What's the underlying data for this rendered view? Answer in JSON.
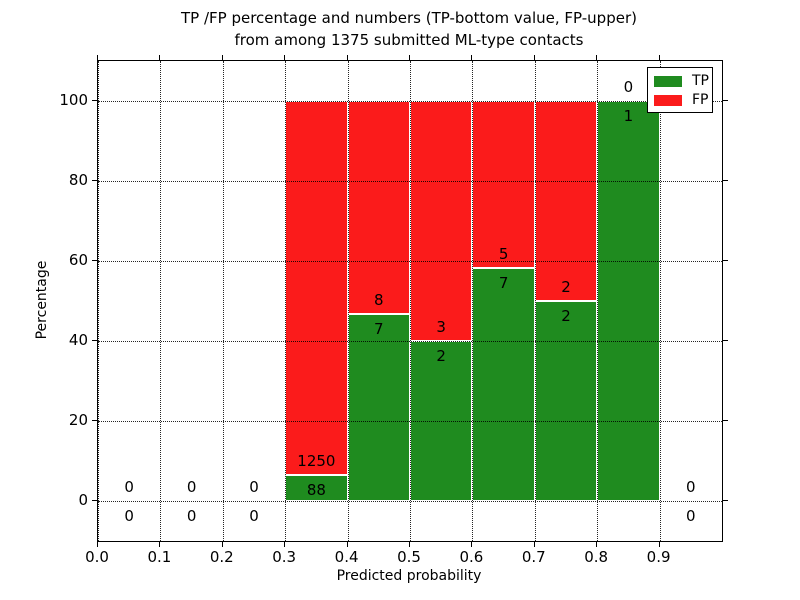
{
  "title": {
    "line1": "TP /FP percentage and numbers (TP-bottom value, FP-upper)",
    "line2": "from among 1375 submitted ML-type contacts"
  },
  "chart_data": {
    "type": "bar",
    "stacked": true,
    "normalized_to_percent": true,
    "title": "TP /FP percentage and numbers (TP-bottom value, FP-upper)\nfrom among 1375 submitted ML-type contacts",
    "xlabel": "Predicted probability",
    "ylabel": "Percentage",
    "xlim": [
      0.0,
      1.0
    ],
    "ylim": [
      -10,
      110
    ],
    "xticks": [
      "0.0",
      "0.1",
      "0.2",
      "0.3",
      "0.4",
      "0.5",
      "0.6",
      "0.7",
      "0.8",
      "0.9"
    ],
    "xtick_values": [
      0.0,
      0.1,
      0.2,
      0.3,
      0.4,
      0.5,
      0.6,
      0.7,
      0.8,
      0.9
    ],
    "yticks": [
      "0",
      "20",
      "40",
      "60",
      "80",
      "100"
    ],
    "ytick_values": [
      0,
      20,
      40,
      60,
      80,
      100
    ],
    "grid": "dotted",
    "bin_width": 0.1,
    "total_contacts": 1375,
    "bins": [
      {
        "x0": 0.0,
        "tp": 0,
        "fp": 0
      },
      {
        "x0": 0.1,
        "tp": 0,
        "fp": 0
      },
      {
        "x0": 0.2,
        "tp": 0,
        "fp": 0
      },
      {
        "x0": 0.3,
        "tp": 88,
        "fp": 1250
      },
      {
        "x0": 0.4,
        "tp": 7,
        "fp": 8
      },
      {
        "x0": 0.5,
        "tp": 2,
        "fp": 3
      },
      {
        "x0": 0.6,
        "tp": 7,
        "fp": 5
      },
      {
        "x0": 0.7,
        "tp": 2,
        "fp": 2
      },
      {
        "x0": 0.8,
        "tp": 1,
        "fp": 0
      },
      {
        "x0": 0.9,
        "tp": 0,
        "fp": 0
      }
    ],
    "series": [
      {
        "name": "TP",
        "color": "#1f8b1f"
      },
      {
        "name": "FP",
        "color": "#fb1b1b"
      }
    ],
    "legend": {
      "position": "upper right"
    },
    "colors": {
      "axis": "#000000",
      "grid": "#000000",
      "text": "#000000",
      "background": "#ffffff"
    }
  }
}
